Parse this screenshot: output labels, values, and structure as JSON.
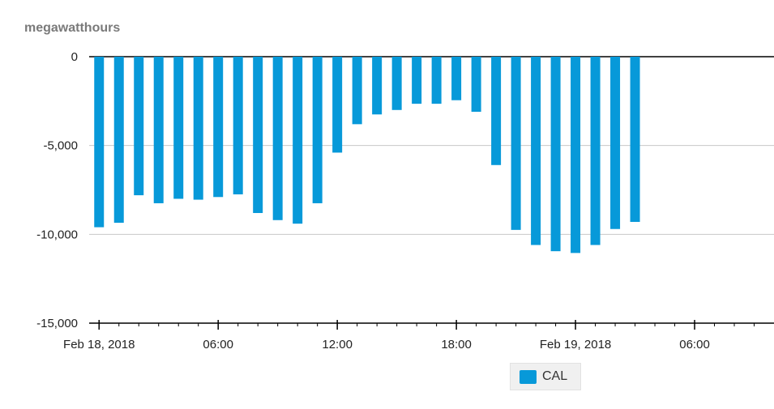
{
  "chart_data": {
    "type": "bar",
    "ylabel": "megawatthours",
    "ylim": [
      -15000,
      0
    ],
    "yticks": [
      0,
      -5000,
      -10000,
      -15000
    ],
    "ytick_labels": [
      "0",
      "-5,000",
      "-10,000",
      "-15,000"
    ],
    "xticks": [
      {
        "hour": 0,
        "label": "Feb 18, 2018"
      },
      {
        "hour": 6,
        "label": "06:00"
      },
      {
        "hour": 12,
        "label": "12:00"
      },
      {
        "hour": 18,
        "label": "18:00"
      },
      {
        "hour": 24,
        "label": "Feb 19, 2018"
      },
      {
        "hour": 30,
        "label": "06:00"
      }
    ],
    "x_range_hours": [
      -0.5,
      34
    ],
    "grid": true,
    "legend_position": "bottom-center",
    "series": [
      {
        "name": "CAL",
        "color": "#0799d9",
        "values": [
          -9600,
          -9350,
          -7800,
          -8250,
          -8000,
          -8050,
          -7900,
          -7750,
          -8800,
          -9200,
          -9400,
          -8250,
          -5400,
          -3800,
          -3250,
          -3000,
          -2650,
          -2650,
          -2450,
          -3100,
          -6100,
          -9750,
          -10600,
          -10950,
          -11050,
          -10600,
          -9700,
          -9300
        ]
      }
    ]
  },
  "legend": {
    "label": "CAL",
    "color": "#0799d9"
  }
}
